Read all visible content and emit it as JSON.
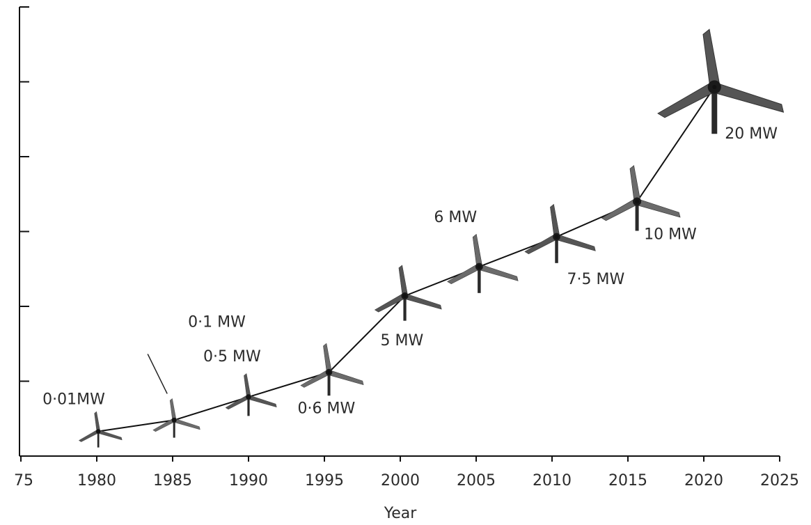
{
  "chart_data": {
    "type": "line",
    "x_label": "Year",
    "x": [
      1980.1,
      1985.1,
      1990,
      1995.3,
      2000.3,
      2005.2,
      2010.3,
      2015.6,
      2020.7
    ],
    "values": [
      0.33,
      0.48,
      0.79,
      1.12,
      2.14,
      2.53,
      2.93,
      3.4,
      4.93
    ],
    "point_labels": [
      "0·01MW",
      "0·1 MW",
      "0·5 MW",
      "0·6 MW",
      "5 MW",
      "6 MW",
      "7·5 MW",
      "10 MW",
      "20 MW"
    ],
    "color": "#111111",
    "xlim": [
      1975,
      2025
    ],
    "xticks": [
      {
        "value": 1975,
        "label": "75"
      },
      1980,
      1985,
      1990,
      1995,
      2000,
      2005,
      2010,
      2015,
      2020,
      2025
    ],
    "ylim": [
      0,
      6
    ],
    "yticks": [
      0,
      1,
      2,
      3,
      4,
      5,
      6
    ],
    "ytick_labels": false
  }
}
